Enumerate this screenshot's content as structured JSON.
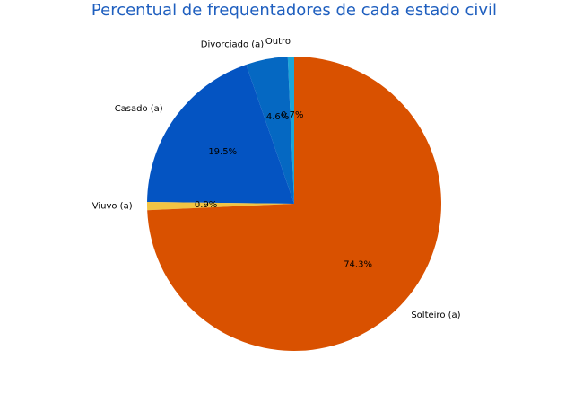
{
  "chart_data": {
    "type": "pie",
    "title": "Percentual de frequentadores de cada estado civil",
    "start_angle_deg": 90,
    "direction": "counterclockwise",
    "slices": [
      {
        "label": "Outro",
        "value": 0.7,
        "pct_label": "0.7%",
        "color": "#1ba6d8"
      },
      {
        "label": "Divorciado (a)",
        "value": 4.6,
        "pct_label": "4.6%",
        "color": "#0568c2"
      },
      {
        "label": "Casado (a)",
        "value": 19.5,
        "pct_label": "19.5%",
        "color": "#0454c2"
      },
      {
        "label": "Viuvo (a)",
        "value": 0.9,
        "pct_label": "0.9%",
        "color": "#f2c443"
      },
      {
        "label": "Solteiro (a)",
        "value": 74.3,
        "pct_label": "74.3%",
        "color": "#d95100"
      }
    ]
  }
}
